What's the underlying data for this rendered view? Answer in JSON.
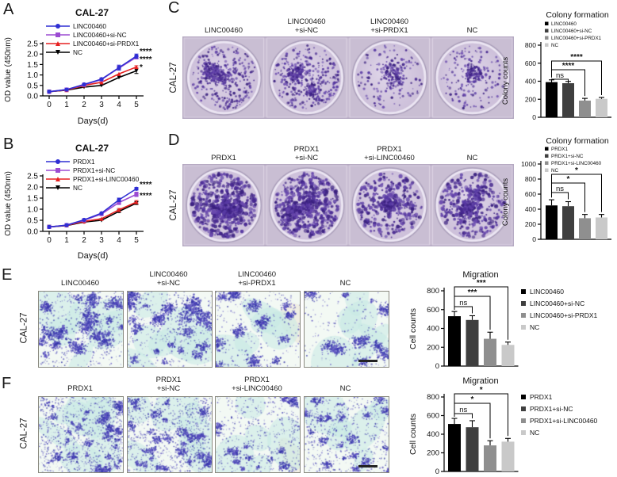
{
  "colors": {
    "blue": "#2f2fd3",
    "purple": "#9b4bd2",
    "red": "#e62020",
    "black": "#000000",
    "bar_colors": [
      "#000000",
      "#3f3f3f",
      "#8f8f8f",
      "#c9c9c9"
    ],
    "colony_dot": "#4a2c94",
    "well_bg": "#d4c9de",
    "strip_bg": "#c9bed3",
    "migration_cell": "#4343b6",
    "migration_bg": "#f3f9f4"
  },
  "panels": {
    "A": {
      "letter": "A",
      "chart_data": {
        "type": "line",
        "title": "CAL-27",
        "xlabel": "Days(d)",
        "ylabel": "OD value (450nm)",
        "x": [
          0,
          1,
          2,
          3,
          4,
          5
        ],
        "ylim": [
          0,
          2.5
        ],
        "yticks": [
          0,
          0.5,
          1,
          1.5,
          2,
          2.5
        ],
        "series": [
          {
            "name": "LINC00460",
            "color": "#2f2fd3",
            "marker": "circle",
            "values": [
              0.2,
              0.3,
              0.55,
              0.8,
              1.35,
              1.9
            ],
            "err": [
              0.02,
              0.02,
              0.03,
              0.04,
              0.12,
              0.1
            ]
          },
          {
            "name": "LINC00460+si-NC",
            "color": "#9b4bd2",
            "marker": "square",
            "values": [
              0.2,
              0.3,
              0.53,
              0.78,
              1.33,
              1.85
            ],
            "err": [
              0.02,
              0.02,
              0.03,
              0.04,
              0.1,
              0.08
            ]
          },
          {
            "name": "LINC00460+si-PRDX1",
            "color": "#e62020",
            "marker": "triangle",
            "values": [
              0.2,
              0.28,
              0.5,
              0.65,
              1.05,
              1.38
            ],
            "err": [
              0.01,
              0.02,
              0.03,
              0.04,
              0.05,
              0.06
            ]
          },
          {
            "name": "NC",
            "color": "#000000",
            "marker": "triangle-down",
            "values": [
              0.2,
              0.27,
              0.42,
              0.5,
              0.88,
              1.2
            ],
            "err": [
              0.01,
              0.02,
              0.03,
              0.04,
              0.05,
              0.13
            ]
          }
        ],
        "annotations": [
          {
            "text": "****",
            "series": 0
          },
          {
            "text": "****",
            "series": 1
          },
          {
            "text": "*",
            "series": 2
          }
        ]
      }
    },
    "B": {
      "letter": "B",
      "chart_data": {
        "type": "line",
        "title": "CAL-27",
        "xlabel": "Days(d)",
        "ylabel": "OD value (450nm)",
        "x": [
          0,
          1,
          2,
          3,
          4,
          5
        ],
        "ylim": [
          0,
          2.5
        ],
        "yticks": [
          0,
          0.5,
          1,
          1.5,
          2,
          2.5
        ],
        "series": [
          {
            "name": "PRDX1",
            "color": "#2f2fd3",
            "marker": "circle",
            "values": [
              0.2,
              0.28,
              0.52,
              0.82,
              1.42,
              1.92
            ],
            "err": [
              0.02,
              0.02,
              0.03,
              0.04,
              0.08,
              0.06
            ]
          },
          {
            "name": "PRDX1+si-NC",
            "color": "#9b4bd2",
            "marker": "square",
            "values": [
              0.2,
              0.28,
              0.5,
              0.78,
              1.3,
              1.67
            ],
            "err": [
              0.02,
              0.02,
              0.03,
              0.04,
              0.09,
              0.1
            ]
          },
          {
            "name": "PRDX1+si-LINC00460",
            "color": "#e62020",
            "marker": "triangle",
            "values": [
              0.2,
              0.27,
              0.45,
              0.57,
              0.97,
              1.32
            ],
            "err": [
              0.01,
              0.02,
              0.03,
              0.04,
              0.06,
              0.07
            ]
          },
          {
            "name": "NC",
            "color": "#000000",
            "marker": "triangle-down",
            "values": [
              0.2,
              0.26,
              0.42,
              0.5,
              0.9,
              1.27
            ],
            "err": [
              0.01,
              0.02,
              0.03,
              0.04,
              0.05,
              0.06
            ]
          }
        ],
        "annotations": [
          {
            "text": "****",
            "series": 0
          },
          {
            "text": "****",
            "series": 1
          }
        ]
      }
    },
    "C": {
      "letter": "C",
      "row_label": "CAL-27",
      "column_labels": [
        [
          "LINC00460"
        ],
        [
          "LINC00460",
          "+si-NC"
        ],
        [
          "LINC00460",
          "+si-PRDX1"
        ],
        [
          "NC"
        ]
      ],
      "image_type": "colony-formation-wells",
      "chart_data": {
        "type": "bar",
        "title": "Colony formation",
        "ylabel": "Colony counts",
        "ylim": [
          0,
          800
        ],
        "yticks": [
          0,
          200,
          400,
          600,
          800
        ],
        "categories": [
          "LINC00460",
          "LINC00460+si-NC",
          "LINC00460+si-PRDX1",
          "NC"
        ],
        "values": [
          390,
          378,
          185,
          205
        ],
        "errors": [
          25,
          20,
          25,
          15
        ],
        "bar_colors": [
          "#000000",
          "#3f3f3f",
          "#8f8f8f",
          "#c9c9c9"
        ],
        "legend": [
          "LINC00460",
          "LINC00460+si-NC",
          "LINC00460+si-PRDX1",
          "NC"
        ],
        "significance": [
          {
            "from": 0,
            "to": 1,
            "label": "ns"
          },
          {
            "from": 0,
            "to": 2,
            "label": "****"
          },
          {
            "from": 0,
            "to": 3,
            "label": "****"
          }
        ]
      }
    },
    "D": {
      "letter": "D",
      "row_label": "CAL-27",
      "column_labels": [
        [
          "PRDX1"
        ],
        [
          "PRDX1",
          "+si-NC"
        ],
        [
          "PRDX1",
          "+si-LINC00460"
        ],
        [
          "NC"
        ]
      ],
      "image_type": "colony-formation-wells",
      "chart_data": {
        "type": "bar",
        "title": "Colony formation",
        "ylabel": "Colony counts",
        "ylim": [
          0,
          1000
        ],
        "yticks": [
          0,
          200,
          400,
          600,
          800,
          1000
        ],
        "categories": [
          "PRDX1",
          "PRDX1+si-NC",
          "PRDX1+si-LINC00460",
          "NC"
        ],
        "values": [
          450,
          440,
          280,
          290
        ],
        "errors": [
          75,
          60,
          50,
          40
        ],
        "bar_colors": [
          "#000000",
          "#3f3f3f",
          "#8f8f8f",
          "#c9c9c9"
        ],
        "legend": [
          "PRDX1",
          "PRDX1+si-NC",
          "PRDX1+si-LINC00460",
          "NC"
        ],
        "significance": [
          {
            "from": 0,
            "to": 1,
            "label": "ns"
          },
          {
            "from": 0,
            "to": 2,
            "label": "*"
          },
          {
            "from": 0,
            "to": 3,
            "label": "*"
          }
        ]
      }
    },
    "E": {
      "letter": "E",
      "row_label": "CAL-27",
      "column_labels": [
        [
          "LINC00460"
        ],
        [
          "LINC00460",
          "+si-NC"
        ],
        [
          "LINC00460",
          "+si-PRDX1"
        ],
        [
          "NC"
        ]
      ],
      "image_type": "transwell-migration",
      "scale_bar": true,
      "chart_data": {
        "type": "bar",
        "title": "Migration",
        "ylabel": "Cell counts",
        "ylim": [
          0,
          800
        ],
        "yticks": [
          0,
          200,
          400,
          600,
          800
        ],
        "categories": [
          "LINC00460",
          "LINC00460+si-NC",
          "LINC00460+si-PRDX1",
          "NC"
        ],
        "values": [
          530,
          490,
          290,
          225
        ],
        "errors": [
          50,
          45,
          70,
          30
        ],
        "bar_colors": [
          "#000000",
          "#3f3f3f",
          "#8f8f8f",
          "#c9c9c9"
        ],
        "legend": [
          "LINC00460",
          "LINC00460+si-NC",
          "LINC00460+si-PRDX1",
          "NC"
        ],
        "significance": [
          {
            "from": 0,
            "to": 1,
            "label": "ns"
          },
          {
            "from": 0,
            "to": 2,
            "label": "***"
          },
          {
            "from": 0,
            "to": 3,
            "label": "***"
          }
        ]
      }
    },
    "F": {
      "letter": "F",
      "row_label": "CAL-27",
      "column_labels": [
        [
          "PRDX1"
        ],
        [
          "PRDX1",
          "+si-NC"
        ],
        [
          "PRDX1",
          "+si-LINC00460"
        ],
        [
          "NC"
        ]
      ],
      "image_type": "transwell-migration",
      "scale_bar": true,
      "chart_data": {
        "type": "bar",
        "title": "Migration",
        "ylabel": "Cell counts",
        "ylim": [
          0,
          800
        ],
        "yticks": [
          0,
          200,
          400,
          600,
          800
        ],
        "categories": [
          "PRDX1",
          "PRDX1+si-NC",
          "PRDX1+si-LINC00460",
          "NC"
        ],
        "values": [
          510,
          475,
          280,
          320
        ],
        "errors": [
          60,
          70,
          50,
          35
        ],
        "bar_colors": [
          "#000000",
          "#3f3f3f",
          "#8f8f8f",
          "#c9c9c9"
        ],
        "legend": [
          "PRDX1",
          "PRDX1+si-NC",
          "PRDX1+si-LINC00460",
          "NC"
        ],
        "significance": [
          {
            "from": 0,
            "to": 1,
            "label": "ns"
          },
          {
            "from": 0,
            "to": 2,
            "label": "*"
          },
          {
            "from": 0,
            "to": 3,
            "label": "*"
          }
        ]
      }
    }
  }
}
